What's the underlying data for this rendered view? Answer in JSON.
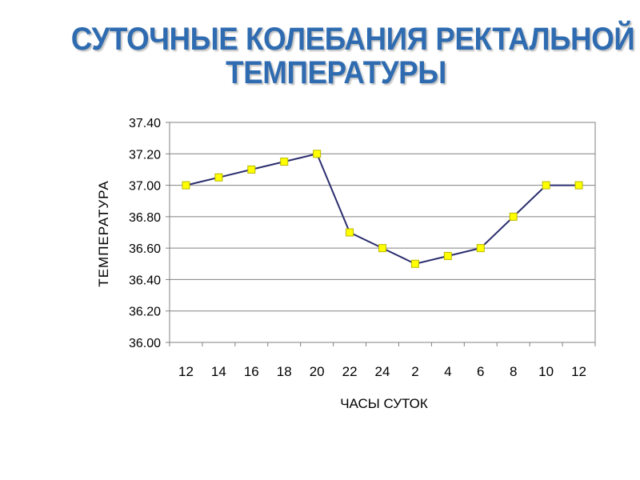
{
  "title_line1": "СУТОЧНЫЕ КОЛЕБАНИЯ РЕКТАЛЬНОЙ",
  "title_line2": "ТЕМПЕРАТУРЫ",
  "colors": {
    "title": "#2e6bb0",
    "line": "#2b2d6e",
    "marker_fill": "#ffff00",
    "marker_stroke": "#b8b800",
    "grid": "#808080"
  },
  "chart_data": {
    "type": "line",
    "title": "",
    "xlabel": "ЧАСЫ СУТОК",
    "ylabel": "ТЕМПЕРАТУРА",
    "categories": [
      "12",
      "14",
      "16",
      "18",
      "20",
      "22",
      "24",
      "2",
      "4",
      "6",
      "8",
      "10",
      "12"
    ],
    "series": [
      {
        "values": [
          37.0,
          37.05,
          37.1,
          37.15,
          37.2,
          36.7,
          36.6,
          36.5,
          36.55,
          36.6,
          36.8,
          37.0,
          37.0
        ]
      }
    ],
    "ylim": [
      36.0,
      37.4
    ],
    "yticks": [
      "36.00",
      "36.20",
      "36.40",
      "36.60",
      "36.80",
      "37.00",
      "37.20",
      "37.40"
    ],
    "grid": true,
    "legend": "none"
  }
}
